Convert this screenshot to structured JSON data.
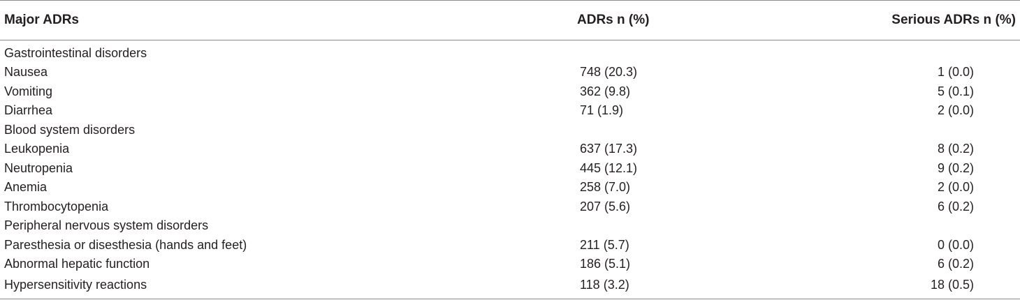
{
  "table": {
    "headers": {
      "name": "Major ADRs",
      "adr": "ADRs n (%)",
      "serious": "Serious ADRs n (%)"
    },
    "rows": [
      {
        "name": "Gastrointestinal disorders",
        "adr": "",
        "serious": ""
      },
      {
        "name": "Nausea",
        "adr": "748 (20.3)",
        "serious": "1 (0.0)"
      },
      {
        "name": "Vomiting",
        "adr": "362 (9.8)",
        "serious": "5 (0.1)"
      },
      {
        "name": "Diarrhea",
        "adr": "71 (1.9)",
        "serious": "2 (0.0)"
      },
      {
        "name": "Blood system disorders",
        "adr": "",
        "serious": ""
      },
      {
        "name": "Leukopenia",
        "adr": "637 (17.3)",
        "serious": "8 (0.2)"
      },
      {
        "name": "Neutropenia",
        "adr": "445 (12.1)",
        "serious": "9 (0.2)"
      },
      {
        "name": "Anemia",
        "adr": "258 (7.0)",
        "serious": "2 (0.0)"
      },
      {
        "name": "Thrombocytopenia",
        "adr": "207 (5.6)",
        "serious": "6 (0.2)"
      },
      {
        "name": "Peripheral nervous system disorders",
        "adr": "",
        "serious": ""
      },
      {
        "name": "Paresthesia or disesthesia (hands and feet)",
        "adr": "211 (5.7)",
        "serious": "0 (0.0)"
      },
      {
        "name": "Abnormal hepatic function",
        "adr": "186 (5.1)",
        "serious": "6 (0.2)"
      },
      {
        "name": "Hypersensitivity reactions",
        "adr": "118 (3.2)",
        "serious": "18 (0.5)"
      }
    ]
  }
}
